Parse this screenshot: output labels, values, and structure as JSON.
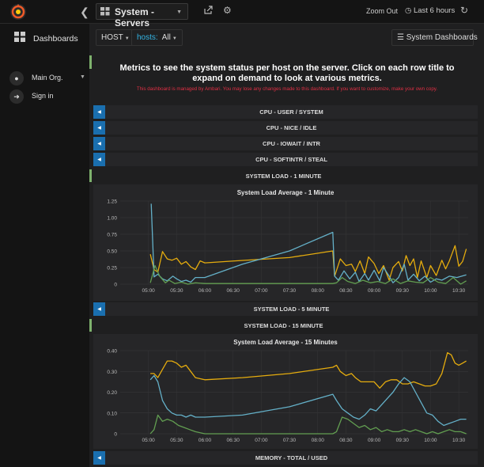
{
  "topbar": {
    "dashboard_title": "System - Servers",
    "zoom_out": "Zoom Out",
    "time_range": "Last 6 hours"
  },
  "sidebar": {
    "dashboards": "Dashboards",
    "org": "Main Org.",
    "sign_in": "Sign in"
  },
  "toolbar": {
    "host": "HOST",
    "hosts_label": "hosts:",
    "hosts_value": "All",
    "system_dashboards": "System Dashboards"
  },
  "intro": {
    "heading": "Metrics to see the system status per host on the server. Click on each row title to expand on demand to look at various metrics.",
    "warning": "This dashboard is managed by Ambari. You may lose any changes made to this dashboard. If you want to customize, make your own copy."
  },
  "rows": {
    "cpu_user_system": "CPU - USER / SYSTEM",
    "cpu_nice_idle": "CPU - NICE / IDLE",
    "cpu_iowait_intr": "CPU - IOWAIT / INTR",
    "cpu_softintr_steal": "CPU - SOFTINTR / STEAL",
    "system_load_1": "SYSTEM LOAD - 1 MINUTE",
    "system_load_5": "SYSTEM LOAD - 5 MINUTE",
    "system_load_15": "SYSTEM LOAD - 15 MINUTE",
    "memory_total_used": "MEMORY - TOTAL / USED"
  },
  "colors": {
    "yellow": "#e5ac0e",
    "blue": "#64b0c8",
    "green": "#629e51",
    "row_toggle": "#1a6faf",
    "accent_green": "#7eb26d",
    "warning_red": "#e02f44"
  },
  "chart_data": [
    {
      "type": "line",
      "title": "System Load Average - 1 Minute",
      "xlabel": "",
      "ylabel": "",
      "x_ticks": [
        "05:00",
        "05:30",
        "06:00",
        "06:30",
        "07:00",
        "07:30",
        "08:00",
        "08:30",
        "09:00",
        "09:30",
        "10:00",
        "10:30"
      ],
      "y_ticks": [
        "0",
        "0.25",
        "0.50",
        "0.75",
        "1.00",
        "1.25"
      ],
      "ylim": [
        0,
        1.25
      ],
      "xlim_minutes": [
        270,
        640
      ],
      "grid": true,
      "series": [
        {
          "color": "#e5ac0e",
          "x": [
            302,
            306,
            310,
            315,
            320,
            325,
            330,
            335,
            340,
            345,
            350,
            355,
            360,
            392,
            450,
            496,
            498,
            504,
            510,
            516,
            520,
            525,
            530,
            534,
            540,
            545,
            550,
            556,
            560,
            566,
            570,
            574,
            578,
            582,
            586,
            590,
            596,
            600,
            606,
            612,
            616,
            620,
            626,
            630,
            634,
            638
          ],
          "y": [
            0.45,
            0.22,
            0.18,
            0.49,
            0.38,
            0.36,
            0.39,
            0.3,
            0.34,
            0.26,
            0.22,
            0.35,
            0.32,
            0.35,
            0.4,
            0.5,
            0.12,
            0.38,
            0.28,
            0.3,
            0.19,
            0.35,
            0.16,
            0.41,
            0.31,
            0.16,
            0.28,
            0.06,
            0.25,
            0.34,
            0.2,
            0.43,
            0.28,
            0.38,
            0.1,
            0.35,
            0.1,
            0.28,
            0.13,
            0.36,
            0.23,
            0.35,
            0.58,
            0.27,
            0.34,
            0.53
          ]
        },
        {
          "color": "#64b0c8",
          "x": [
            303,
            306,
            310,
            315,
            320,
            326,
            330,
            335,
            340,
            345,
            350,
            360,
            400,
            450,
            496,
            498,
            502,
            508,
            514,
            520,
            524,
            530,
            534,
            540,
            546,
            550,
            556,
            560,
            566,
            572,
            576,
            582,
            588,
            594,
            600,
            606,
            612,
            620,
            628,
            638
          ],
          "y": [
            1.21,
            0.11,
            0.15,
            0.08,
            0.05,
            0.12,
            0.08,
            0.04,
            0.06,
            0.03,
            0.1,
            0.1,
            0.3,
            0.5,
            0.78,
            0.12,
            0.06,
            0.2,
            0.08,
            0.18,
            0.04,
            0.16,
            0.06,
            0.21,
            0.05,
            0.25,
            0.12,
            0.02,
            0.1,
            0.3,
            0.06,
            0.15,
            0.05,
            0.12,
            0.03,
            0.08,
            0.06,
            0.12,
            0.1,
            0.14
          ]
        },
        {
          "color": "#629e51",
          "x": [
            302,
            307,
            312,
            318,
            322,
            328,
            335,
            342,
            350,
            360,
            450,
            496,
            500,
            506,
            512,
            520,
            528,
            536,
            544,
            552,
            560,
            568,
            576,
            584,
            592,
            600,
            608,
            616,
            624,
            632,
            638
          ],
          "y": [
            0.02,
            0.28,
            0.12,
            0.02,
            0.06,
            0.01,
            0.03,
            0.0,
            0.02,
            0.01,
            0.01,
            0.01,
            0.02,
            0.1,
            0.04,
            0.01,
            0.06,
            0.02,
            0.04,
            0.01,
            0.08,
            0.01,
            0.05,
            0.03,
            0.02,
            0.1,
            0.03,
            0.01,
            0.1,
            0.0,
            0.05
          ]
        }
      ]
    },
    {
      "type": "line",
      "title": "System Load Average - 15 Minutes",
      "xlabel": "",
      "ylabel": "",
      "x_ticks": [
        "05:00",
        "05:30",
        "06:00",
        "06:30",
        "07:00",
        "07:30",
        "08:00",
        "08:30",
        "09:00",
        "09:30",
        "10:00",
        "10:30"
      ],
      "y_ticks": [
        "0",
        "0.10",
        "0.20",
        "0.30",
        "0.40"
      ],
      "ylim": [
        0,
        0.4
      ],
      "xlim_minutes": [
        270,
        640
      ],
      "grid": true,
      "series": [
        {
          "color": "#e5ac0e",
          "x": [
            302,
            306,
            310,
            315,
            320,
            325,
            330,
            335,
            340,
            345,
            350,
            360,
            400,
            450,
            496,
            500,
            504,
            510,
            516,
            520,
            526,
            532,
            540,
            546,
            552,
            558,
            564,
            570,
            576,
            582,
            588,
            594,
            600,
            606,
            612,
            618,
            622,
            626,
            630,
            634,
            638
          ],
          "y": [
            0.29,
            0.29,
            0.27,
            0.31,
            0.35,
            0.35,
            0.34,
            0.32,
            0.33,
            0.3,
            0.27,
            0.26,
            0.27,
            0.29,
            0.32,
            0.33,
            0.3,
            0.28,
            0.29,
            0.27,
            0.25,
            0.25,
            0.25,
            0.22,
            0.25,
            0.26,
            0.26,
            0.24,
            0.24,
            0.25,
            0.24,
            0.23,
            0.23,
            0.24,
            0.29,
            0.39,
            0.38,
            0.34,
            0.33,
            0.34,
            0.35
          ]
        },
        {
          "color": "#64b0c8",
          "x": [
            302,
            306,
            310,
            315,
            320,
            325,
            330,
            335,
            340,
            345,
            350,
            360,
            400,
            450,
            496,
            500,
            506,
            512,
            518,
            524,
            530,
            536,
            542,
            548,
            554,
            560,
            566,
            572,
            578,
            584,
            590,
            596,
            602,
            608,
            614,
            620,
            626,
            632,
            638
          ],
          "y": [
            0.26,
            0.28,
            0.25,
            0.16,
            0.12,
            0.1,
            0.09,
            0.09,
            0.08,
            0.09,
            0.08,
            0.08,
            0.09,
            0.13,
            0.19,
            0.16,
            0.12,
            0.1,
            0.08,
            0.07,
            0.09,
            0.12,
            0.11,
            0.14,
            0.17,
            0.2,
            0.24,
            0.27,
            0.25,
            0.2,
            0.15,
            0.1,
            0.09,
            0.06,
            0.04,
            0.05,
            0.06,
            0.07,
            0.07
          ]
        },
        {
          "color": "#629e51",
          "x": [
            302,
            306,
            310,
            315,
            320,
            326,
            332,
            338,
            344,
            350,
            360,
            450,
            496,
            500,
            506,
            512,
            518,
            524,
            530,
            536,
            542,
            548,
            554,
            560,
            566,
            572,
            578,
            584,
            590,
            596,
            602,
            608,
            614,
            620,
            626,
            632,
            638
          ],
          "y": [
            0.0,
            0.02,
            0.09,
            0.06,
            0.07,
            0.06,
            0.04,
            0.03,
            0.02,
            0.01,
            0.0,
            0.0,
            0.0,
            0.01,
            0.08,
            0.07,
            0.05,
            0.03,
            0.04,
            0.02,
            0.03,
            0.01,
            0.02,
            0.01,
            0.01,
            0.02,
            0.01,
            0.02,
            0.01,
            0.0,
            0.01,
            0.0,
            0.01,
            0.02,
            0.01,
            0.01,
            0.0
          ]
        }
      ]
    }
  ]
}
